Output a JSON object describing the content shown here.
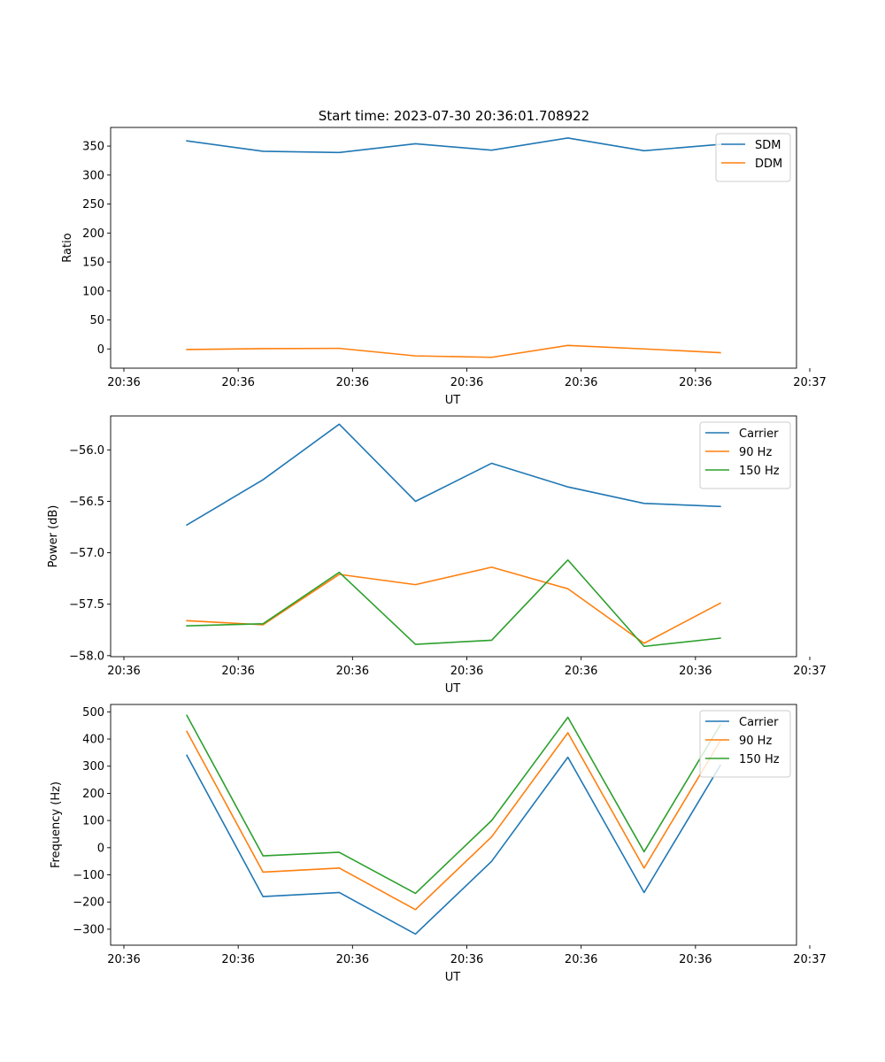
{
  "figure_title": "Start time: 2023-07-30 20:36:01.708922",
  "colors": {
    "c0": "#1f77b4",
    "c1": "#ff7f0e",
    "c2": "#2ca02c"
  },
  "chart_data": [
    {
      "type": "line",
      "title": "Start time: 2023-07-30 20:36:01.708922",
      "xlabel": "UT",
      "ylabel": "Ratio",
      "xlim": [
        0,
        9
      ],
      "x": [
        1,
        2,
        3,
        4,
        5,
        6,
        7,
        8
      ],
      "ylim": [
        -33.2,
        382.2
      ],
      "yticks": [
        0,
        50,
        100,
        150,
        200,
        250,
        300,
        350
      ],
      "ytick_labels": [
        "0",
        "50",
        "100",
        "150",
        "200",
        "250",
        "300",
        "350"
      ],
      "xticks": [
        0,
        1.5,
        3,
        4.5,
        6,
        7.5,
        9
      ],
      "xtick_labels": [
        "20:36",
        "20:36",
        "20:36",
        "20:36",
        "20:36",
        "20:36",
        "20:37"
      ],
      "legend_position": "top-right",
      "series": [
        {
          "name": "SDM",
          "color": "#1f77b4",
          "values": [
            359,
            341,
            339,
            354,
            343,
            364,
            342,
            353
          ]
        },
        {
          "name": "DDM",
          "color": "#ff7f0e",
          "values": [
            -1,
            0.5,
            1,
            -12,
            -14.5,
            6,
            0,
            -6.5
          ]
        }
      ]
    },
    {
      "type": "line",
      "title": "",
      "xlabel": "UT",
      "ylabel": "Power (dB)",
      "xlim": [
        0,
        9
      ],
      "x": [
        1,
        2,
        3,
        4,
        5,
        6,
        7,
        8
      ],
      "ylim": [
        -58.01,
        -55.67
      ],
      "yticks": [
        -58.0,
        -57.5,
        -57.0,
        -56.5,
        -56.0
      ],
      "ytick_labels": [
        "−58.0",
        "−57.5",
        "−57.0",
        "−56.5",
        "−56.0"
      ],
      "xticks": [
        0,
        1.5,
        3,
        4.5,
        6,
        7.5,
        9
      ],
      "xtick_labels": [
        "20:36",
        "20:36",
        "20:36",
        "20:36",
        "20:36",
        "20:36",
        "20:37"
      ],
      "legend_position": "top-right",
      "series": [
        {
          "name": "Carrier",
          "color": "#1f77b4",
          "values": [
            -56.73,
            -56.29,
            -55.75,
            -56.5,
            -56.13,
            -56.36,
            -56.52,
            -56.55
          ]
        },
        {
          "name": "90 Hz",
          "color": "#ff7f0e",
          "values": [
            -57.66,
            -57.7,
            -57.21,
            -57.31,
            -57.14,
            -57.35,
            -57.88,
            -57.49
          ]
        },
        {
          "name": "150 Hz",
          "color": "#2ca02c",
          "values": [
            -57.71,
            -57.69,
            -57.19,
            -57.89,
            -57.85,
            -57.07,
            -57.91,
            -57.83
          ]
        }
      ]
    },
    {
      "type": "line",
      "title": "",
      "xlabel": "UT",
      "ylabel": "Frequency (Hz)",
      "xlim": [
        0,
        9
      ],
      "x": [
        1,
        2,
        3,
        4,
        5,
        6,
        7,
        8
      ],
      "ylim": [
        -358.9,
        527.2
      ],
      "yticks": [
        -300,
        -200,
        -100,
        0,
        100,
        200,
        300,
        400,
        500
      ],
      "ytick_labels": [
        "−300",
        "−200",
        "−100",
        "0",
        "100",
        "200",
        "300",
        "400",
        "500"
      ],
      "xticks": [
        0,
        1.5,
        3,
        4.5,
        6,
        7.5,
        9
      ],
      "xtick_labels": [
        "20:36",
        "20:36",
        "20:36",
        "20:36",
        "20:36",
        "20:36",
        "20:37"
      ],
      "legend_position": "top-right",
      "series": [
        {
          "name": "Carrier",
          "color": "#1f77b4",
          "values": [
            340,
            -180,
            -165,
            -318,
            -50,
            333,
            -165,
            303
          ]
        },
        {
          "name": "90 Hz",
          "color": "#ff7f0e",
          "values": [
            428,
            -90,
            -75,
            -228,
            40,
            423,
            -75,
            393
          ]
        },
        {
          "name": "150 Hz",
          "color": "#2ca02c",
          "values": [
            487,
            -30,
            -17,
            -168,
            100,
            480,
            -15,
            452
          ]
        }
      ]
    }
  ]
}
